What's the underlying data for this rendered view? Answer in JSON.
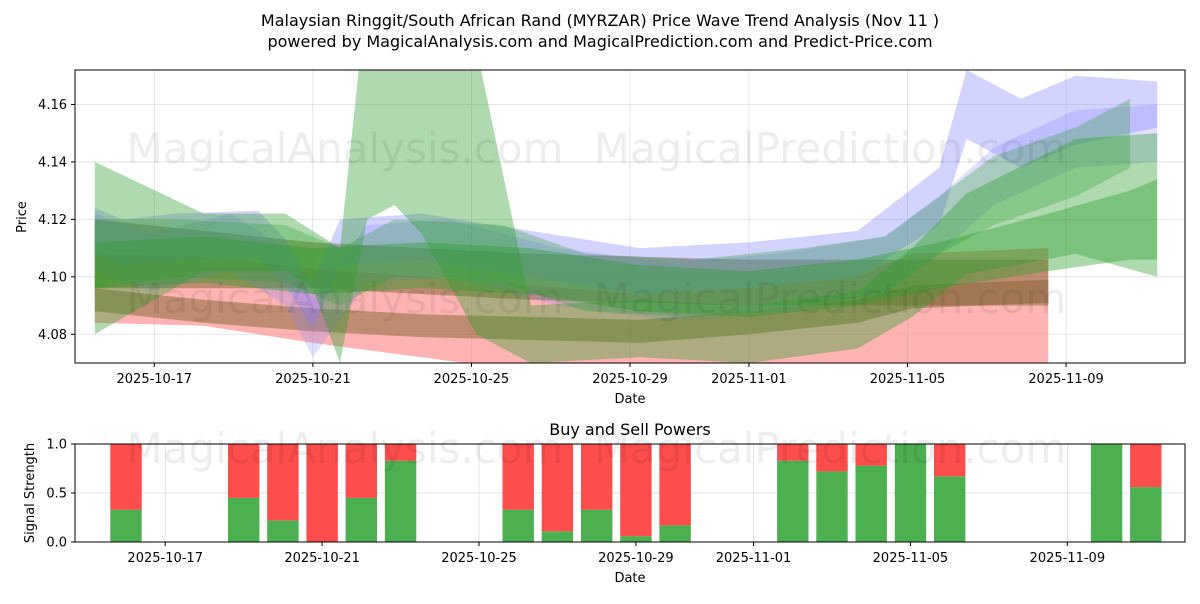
{
  "title_line1": "Malaysian Ringgit/South African Rand (MYRZAR) Price Wave Trend Analysis (Nov 11 )",
  "title_line2": "powered by MagicalAnalysis.com and MagicalPrediction.com and Predict-Price.com",
  "watermarks": [
    "MagicalAnalysis.com",
    "MagicalPrediction.com"
  ],
  "colors": {
    "buy": "#4caf50",
    "sell": "#ff4c4c",
    "green_band": "#2e9e2e",
    "blue_band": "#8080ff",
    "red_band": "#ff8080",
    "brown_band": "#8b6a3a"
  },
  "chart_data": [
    {
      "type": "area",
      "title": "",
      "xlabel": "Date",
      "ylabel": "Price",
      "x_domain": [
        "2025-10-15",
        "2025-11-12"
      ],
      "xticks": [
        "2025-10-17",
        "2025-10-21",
        "2025-10-25",
        "2025-10-29",
        "2025-11-01",
        "2025-11-05",
        "2025-11-09"
      ],
      "ylim": [
        4.07,
        4.172
      ],
      "yticks": [
        4.08,
        4.1,
        4.12,
        4.14,
        4.16
      ],
      "ytick_labels": [
        "4.08",
        "4.10",
        "4.12",
        "4.14",
        "4.16"
      ],
      "series": [
        {
          "name": "red-band",
          "color": "red_band",
          "opacity": 0.6,
          "points": [
            [
              0,
              4.096
            ],
            [
              4,
              4.095
            ],
            [
              8,
              4.09
            ],
            [
              12,
              4.086
            ],
            [
              16,
              4.082
            ],
            [
              20,
              4.078
            ],
            [
              24,
              4.078
            ],
            [
              28,
              4.08
            ],
            [
              30,
              4.086
            ],
            [
              35,
              4.086
            ]
          ],
          "width": [
            0.012,
            0.012,
            0.013,
            0.014,
            0.015,
            0.016,
            0.018,
            0.02,
            0.022,
            0.024
          ]
        },
        {
          "name": "brown-band-upper",
          "color": "brown_band",
          "opacity": 0.55,
          "points": [
            [
              0,
              4.108
            ],
            [
              4,
              4.106
            ],
            [
              8,
              4.104
            ],
            [
              12,
              4.102
            ],
            [
              16,
              4.1
            ],
            [
              20,
              4.099
            ],
            [
              24,
              4.098
            ],
            [
              28,
              4.098
            ],
            [
              30,
              4.098
            ],
            [
              35,
              4.098
            ]
          ],
          "width": [
            0.012,
            0.01,
            0.008,
            0.008,
            0.008,
            0.008,
            0.008,
            0.008,
            0.008,
            0.008
          ]
        },
        {
          "name": "brown-band-lower",
          "color": "brown_band",
          "opacity": 0.55,
          "points": [
            [
              0,
              4.092
            ],
            [
              4,
              4.088
            ],
            [
              8,
              4.085
            ],
            [
              12,
              4.083
            ],
            [
              16,
              4.082
            ],
            [
              20,
              4.081
            ],
            [
              24,
              4.084
            ],
            [
              28,
              4.088
            ],
            [
              30,
              4.093
            ],
            [
              35,
              4.095
            ]
          ],
          "width": [
            0.004,
            0.004,
            0.004,
            0.004,
            0.004,
            0.004,
            0.004,
            0.004,
            0.004,
            0.004
          ]
        },
        {
          "name": "blue-band-1",
          "color": "blue_band",
          "opacity": 0.35,
          "points": [
            [
              0,
              4.116
            ],
            [
              1,
              4.112
            ],
            [
              3,
              4.114
            ],
            [
              6,
              4.115
            ],
            [
              7,
              4.105
            ],
            [
              8,
              4.09
            ],
            [
              9,
              4.112
            ],
            [
              12,
              4.114
            ],
            [
              16,
              4.108
            ],
            [
              20,
              4.102
            ],
            [
              24,
              4.104
            ],
            [
              28,
              4.108
            ],
            [
              31,
              4.128
            ],
            [
              32,
              4.16
            ],
            [
              34,
              4.15
            ],
            [
              36,
              4.158
            ],
            [
              39,
              4.16
            ]
          ],
          "width": [
            0.008,
            0.008,
            0.008,
            0.008,
            0.008,
            0.008,
            0.008,
            0.008,
            0.008,
            0.008,
            0.008,
            0.008,
            0.01,
            0.012,
            0.012,
            0.012,
            0.008
          ]
        },
        {
          "name": "blue-band-2",
          "color": "blue_band",
          "opacity": 0.25,
          "points": [
            [
              0,
              4.112
            ],
            [
              2,
              4.105
            ],
            [
              5,
              4.112
            ],
            [
              7,
              4.1
            ],
            [
              8,
              4.082
            ],
            [
              10,
              4.108
            ],
            [
              13,
              4.11
            ],
            [
              17,
              4.1
            ],
            [
              21,
              4.095
            ],
            [
              25,
              4.098
            ],
            [
              29,
              4.104
            ],
            [
              31,
              4.118
            ],
            [
              33,
              4.135
            ],
            [
              36,
              4.148
            ],
            [
              39,
              4.15
            ]
          ],
          "width": [
            0.01,
            0.01,
            0.01,
            0.01,
            0.01,
            0.01,
            0.01,
            0.01,
            0.01,
            0.01,
            0.01,
            0.01,
            0.01,
            0.01,
            0.01
          ]
        },
        {
          "name": "green-band-main",
          "color": "green_band",
          "opacity": 0.38,
          "points": [
            [
              0,
              4.11
            ],
            [
              4,
              4.112
            ],
            [
              7,
              4.112
            ],
            [
              8,
              4.106
            ],
            [
              9,
              4.09
            ],
            [
              10,
              4.16
            ],
            [
              11,
              4.175
            ],
            [
              12,
              4.165
            ],
            [
              14,
              4.13
            ],
            [
              16,
              4.08
            ],
            [
              20,
              4.082
            ],
            [
              24,
              4.08
            ],
            [
              28,
              4.085
            ],
            [
              30,
              4.098
            ],
            [
              32,
              4.115
            ],
            [
              36,
              4.128
            ],
            [
              39,
              4.125
            ]
          ],
          "width": [
            0.03,
            0.01,
            0.01,
            0.01,
            0.02,
            0.04,
            0.05,
            0.05,
            0.05,
            0.01,
            0.01,
            0.01,
            0.01,
            0.012,
            0.014,
            0.02,
            0.025
          ]
        },
        {
          "name": "green-band-2",
          "color": "green_band",
          "opacity": 0.3,
          "points": [
            [
              0,
              4.108
            ],
            [
              3,
              4.11
            ],
            [
              7,
              4.108
            ],
            [
              9,
              4.1
            ],
            [
              11,
              4.11
            ],
            [
              15,
              4.108
            ],
            [
              18,
              4.098
            ],
            [
              22,
              4.096
            ],
            [
              26,
              4.1
            ],
            [
              29,
              4.104
            ],
            [
              31,
              4.118
            ],
            [
              33,
              4.13
            ],
            [
              36,
              4.14
            ],
            [
              38,
              4.15
            ]
          ],
          "width": [
            0.012,
            0.01,
            0.01,
            0.01,
            0.01,
            0.01,
            0.01,
            0.01,
            0.01,
            0.01,
            0.01,
            0.012,
            0.012,
            0.012
          ]
        },
        {
          "name": "green-band-3",
          "color": "green_band",
          "opacity": 0.4,
          "points": [
            [
              0,
              4.104
            ],
            [
              4,
              4.106
            ],
            [
              8,
              4.102
            ],
            [
              12,
              4.104
            ],
            [
              16,
              4.102
            ],
            [
              20,
              4.096
            ],
            [
              24,
              4.094
            ],
            [
              28,
              4.098
            ],
            [
              31,
              4.104
            ],
            [
              35,
              4.112
            ],
            [
              38,
              4.118
            ],
            [
              39,
              4.12
            ]
          ],
          "width": [
            0.008,
            0.008,
            0.008,
            0.008,
            0.008,
            0.008,
            0.008,
            0.008,
            0.008,
            0.01,
            0.012,
            0.014
          ]
        }
      ]
    },
    {
      "type": "bar",
      "title": "Buy and Sell Powers",
      "xlabel": "Date",
      "ylabel": "Signal Strength",
      "x_domain": [
        "2025-10-14.7",
        "2025-11-12"
      ],
      "xticks": [
        "2025-10-17",
        "2025-10-21",
        "2025-10-25",
        "2025-10-29",
        "2025-11-01",
        "2025-11-05",
        "2025-11-09"
      ],
      "ylim": [
        0,
        1.0
      ],
      "yticks": [
        0.0,
        0.5,
        1.0
      ],
      "ytick_labels": [
        "0.0",
        "0.5",
        "1.0"
      ],
      "categories": [
        "2025-10-16",
        "2025-10-19",
        "2025-10-20",
        "2025-10-21",
        "2025-10-22",
        "2025-10-23",
        "2025-10-26",
        "2025-10-27",
        "2025-10-28",
        "2025-10-29",
        "2025-10-30",
        "2025-11-02",
        "2025-11-03",
        "2025-11-04",
        "2025-11-05",
        "2025-11-06",
        "2025-11-10",
        "2025-11-11"
      ],
      "series": [
        {
          "name": "Buy",
          "color": "buy",
          "values": [
            0.33,
            0.45,
            0.22,
            0.0,
            0.45,
            0.83,
            0.33,
            0.11,
            0.33,
            0.06,
            0.17,
            0.83,
            0.72,
            0.78,
            1.0,
            0.67,
            1.0,
            0.56
          ]
        },
        {
          "name": "Sell",
          "color": "sell",
          "values": [
            0.67,
            0.55,
            0.78,
            1.0,
            0.55,
            0.17,
            0.67,
            0.89,
            0.67,
            0.94,
            0.83,
            0.17,
            0.28,
            0.22,
            0.0,
            0.33,
            0.0,
            0.44
          ]
        }
      ]
    }
  ]
}
